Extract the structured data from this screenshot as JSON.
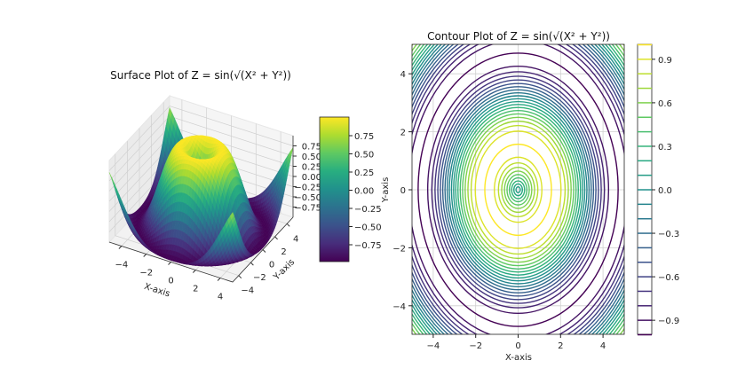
{
  "chart_data": [
    {
      "type": "surface",
      "title": "Surface Plot of Z = sin(√(X² + Y²))",
      "function": "sin(sqrt(X^2 + Y^2))",
      "xlabel": "X-axis",
      "ylabel": "Y-axis",
      "xlim": [
        -5,
        5
      ],
      "ylim": [
        -5,
        5
      ],
      "zlim": [
        -1,
        1
      ],
      "xticks": [
        "−4",
        "−2",
        "0",
        "2",
        "4"
      ],
      "yticks": [
        "−4",
        "−2",
        "0",
        "2",
        "4"
      ],
      "zticks": [
        "0.75",
        "0.50",
        "0.25",
        "0.00",
        "−0.25",
        "−0.50",
        "−0.75"
      ],
      "colormap": "viridis",
      "grid": true,
      "colorbar": {
        "range": [
          -1,
          1
        ],
        "ticks": [
          "0.75",
          "0.50",
          "0.25",
          "0.00",
          "−0.25",
          "−0.50",
          "−0.75"
        ]
      }
    },
    {
      "type": "contour",
      "title": "Contour Plot of Z = sin(√(X² + Y²))",
      "function": "sin(sqrt(X^2 + Y^2))",
      "xlabel": "X-axis",
      "ylabel": "Y-axis",
      "xlim": [
        -5,
        5
      ],
      "ylim": [
        -5,
        5
      ],
      "xticks": [
        "−4",
        "−2",
        "0",
        "2",
        "4"
      ],
      "yticks": [
        "4",
        "2",
        "0",
        "−2",
        "−4"
      ],
      "levels_range": [
        -1,
        1
      ],
      "level_step": 0.1,
      "colormap": "viridis",
      "grid": true,
      "colorbar": {
        "range": [
          -1,
          1
        ],
        "ticks": [
          "0.9",
          "0.6",
          "0.3",
          "0.0",
          "−0.3",
          "−0.6",
          "−0.9"
        ]
      }
    }
  ]
}
